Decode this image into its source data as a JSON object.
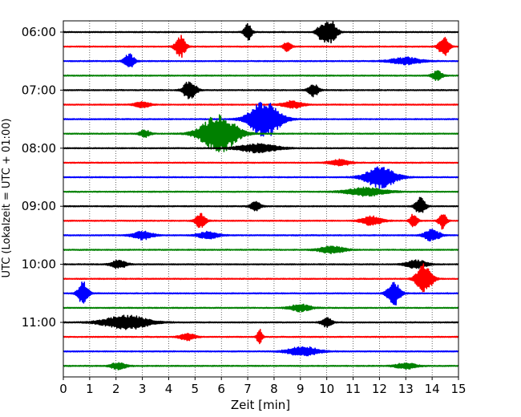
{
  "chart_data": {
    "type": "line",
    "title": "",
    "xlabel": "Zeit  [min]",
    "ylabel": "UTC (Lokalzeit = UTC + 01:00)",
    "xlim": [
      0,
      15
    ],
    "x_ticks": [
      "0",
      "1",
      "2",
      "3",
      "4",
      "5",
      "6",
      "7",
      "8",
      "9",
      "10",
      "11",
      "12",
      "13",
      "14",
      "15"
    ],
    "y_tick_labels": [
      "06:00",
      "07:00",
      "08:00",
      "09:00",
      "10:00",
      "11:00"
    ],
    "grid": "vertical dotted lines at each minute",
    "trace_colors": [
      "#000000",
      "#ff0000",
      "#0000ff",
      "#008000"
    ],
    "traces": [
      {
        "start": "06:00",
        "color": "#000000",
        "events": [
          {
            "t": 7.0,
            "amp": 0.7,
            "dur": 0.15
          },
          {
            "t": 9.8,
            "amp": 0.6,
            "dur": 0.2
          },
          {
            "t": 10.15,
            "amp": 0.9,
            "dur": 0.25
          }
        ]
      },
      {
        "start": "06:15",
        "color": "#ff0000",
        "events": [
          {
            "t": 4.45,
            "amp": 0.9,
            "dur": 0.2
          },
          {
            "t": 8.5,
            "amp": 0.4,
            "dur": 0.15
          },
          {
            "t": 14.45,
            "amp": 0.8,
            "dur": 0.2
          }
        ]
      },
      {
        "start": "06:30",
        "color": "#0000ff",
        "events": [
          {
            "t": 2.5,
            "amp": 0.6,
            "dur": 0.2
          },
          {
            "t": 13.0,
            "amp": 0.3,
            "dur": 0.6
          }
        ]
      },
      {
        "start": "06:45",
        "color": "#008000",
        "events": [
          {
            "t": 14.2,
            "amp": 0.4,
            "dur": 0.2
          }
        ]
      },
      {
        "start": "07:00",
        "color": "#000000",
        "events": [
          {
            "t": 4.8,
            "amp": 0.8,
            "dur": 0.25
          },
          {
            "t": 9.5,
            "amp": 0.5,
            "dur": 0.2
          }
        ]
      },
      {
        "start": "07:15",
        "color": "#ff0000",
        "events": [
          {
            "t": 3.0,
            "amp": 0.25,
            "dur": 0.3
          },
          {
            "t": 8.7,
            "amp": 0.3,
            "dur": 0.4
          }
        ]
      },
      {
        "start": "07:30",
        "color": "#0000ff",
        "events": [
          {
            "t": 7.65,
            "amp": 1.5,
            "dur": 0.6
          }
        ]
      },
      {
        "start": "07:45",
        "color": "#008000",
        "events": [
          {
            "t": 5.9,
            "amp": 1.6,
            "dur": 0.7
          },
          {
            "t": 3.1,
            "amp": 0.3,
            "dur": 0.2
          }
        ]
      },
      {
        "start": "08:00",
        "color": "#000000",
        "events": [
          {
            "t": 7.4,
            "amp": 0.35,
            "dur": 0.8
          }
        ]
      },
      {
        "start": "08:15",
        "color": "#ff0000",
        "events": [
          {
            "t": 10.5,
            "amp": 0.25,
            "dur": 0.4
          }
        ]
      },
      {
        "start": "08:30",
        "color": "#0000ff",
        "events": [
          {
            "t": 12.05,
            "amp": 0.9,
            "dur": 0.6
          }
        ]
      },
      {
        "start": "08:45",
        "color": "#008000",
        "events": [
          {
            "t": 11.5,
            "amp": 0.35,
            "dur": 0.8
          }
        ]
      },
      {
        "start": "09:00",
        "color": "#000000",
        "events": [
          {
            "t": 13.55,
            "amp": 0.7,
            "dur": 0.2
          },
          {
            "t": 7.3,
            "amp": 0.4,
            "dur": 0.2
          }
        ]
      },
      {
        "start": "09:15",
        "color": "#ff0000",
        "events": [
          {
            "t": 5.2,
            "amp": 0.6,
            "dur": 0.2
          },
          {
            "t": 11.7,
            "amp": 0.4,
            "dur": 0.4
          },
          {
            "t": 13.3,
            "amp": 0.6,
            "dur": 0.15
          },
          {
            "t": 14.4,
            "amp": 0.7,
            "dur": 0.15
          }
        ]
      },
      {
        "start": "09:30",
        "color": "#0000ff",
        "events": [
          {
            "t": 3.0,
            "amp": 0.35,
            "dur": 0.4
          },
          {
            "t": 5.5,
            "amp": 0.3,
            "dur": 0.4
          },
          {
            "t": 14.0,
            "amp": 0.5,
            "dur": 0.3
          }
        ]
      },
      {
        "start": "09:45",
        "color": "#008000",
        "events": [
          {
            "t": 10.2,
            "amp": 0.3,
            "dur": 0.5
          }
        ]
      },
      {
        "start": "10:00",
        "color": "#000000",
        "events": [
          {
            "t": 2.1,
            "amp": 0.35,
            "dur": 0.3
          },
          {
            "t": 13.4,
            "amp": 0.35,
            "dur": 0.4
          }
        ]
      },
      {
        "start": "10:15",
        "color": "#ff0000",
        "events": [
          {
            "t": 13.7,
            "amp": 1.2,
            "dur": 0.3
          }
        ]
      },
      {
        "start": "10:30",
        "color": "#0000ff",
        "events": [
          {
            "t": 0.75,
            "amp": 1.0,
            "dur": 0.2
          },
          {
            "t": 12.55,
            "amp": 1.0,
            "dur": 0.25
          }
        ]
      },
      {
        "start": "10:45",
        "color": "#008000",
        "events": [
          {
            "t": 9.0,
            "amp": 0.3,
            "dur": 0.4
          }
        ]
      },
      {
        "start": "11:00",
        "color": "#000000",
        "events": [
          {
            "t": 2.4,
            "amp": 0.6,
            "dur": 0.9
          },
          {
            "t": 10.0,
            "amp": 0.4,
            "dur": 0.2
          }
        ]
      },
      {
        "start": "11:15",
        "color": "#ff0000",
        "events": [
          {
            "t": 7.45,
            "amp": 0.7,
            "dur": 0.1
          },
          {
            "t": 4.7,
            "amp": 0.3,
            "dur": 0.3
          }
        ]
      },
      {
        "start": "11:30",
        "color": "#0000ff",
        "events": [
          {
            "t": 9.1,
            "amp": 0.4,
            "dur": 0.6
          }
        ]
      },
      {
        "start": "11:45",
        "color": "#008000",
        "events": [
          {
            "t": 2.1,
            "amp": 0.3,
            "dur": 0.3
          },
          {
            "t": 13.0,
            "amp": 0.25,
            "dur": 0.4
          }
        ]
      }
    ]
  }
}
